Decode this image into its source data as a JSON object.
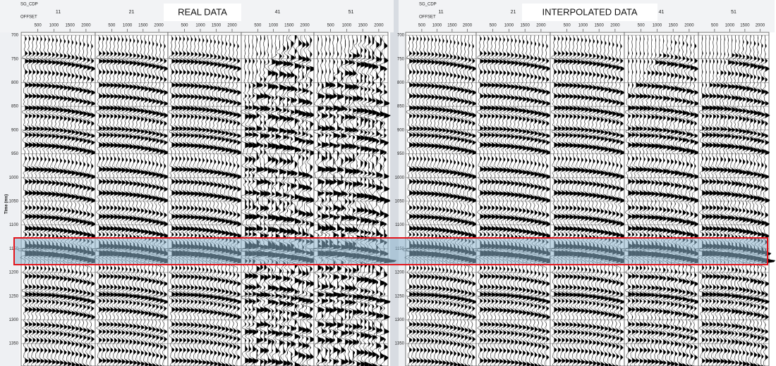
{
  "panels": [
    {
      "title": "REAL DATA",
      "header": "SG_CDP",
      "offset_label": "OFFSET",
      "cdp_labels": [
        "11",
        "21",
        "41",
        "51"
      ],
      "offset_ticks": [
        "500",
        "1000",
        "1500",
        "2000"
      ]
    },
    {
      "title": "INTERPOLATED DATA",
      "header": "SG_CDP",
      "offset_label": "OFFSET",
      "cdp_labels": [
        "11",
        "21",
        "41",
        "51"
      ],
      "offset_ticks": [
        "500",
        "1000",
        "1500",
        "2000"
      ]
    }
  ],
  "time_axis": {
    "label": "Time (ms)",
    "ticks": [
      "700",
      "750",
      "800",
      "850",
      "900",
      "950",
      "1000",
      "1050",
      "1100",
      "1150",
      "1200",
      "1250",
      "1300",
      "1350"
    ]
  }
}
